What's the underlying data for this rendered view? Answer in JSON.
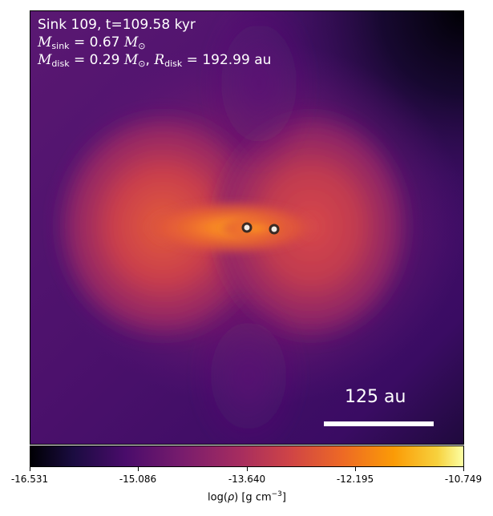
{
  "panel": {
    "title_line": "Sink 109, t=109.58 kyr",
    "mass_line": {
      "sym": "M",
      "sub": "sink",
      "value": " = 0.67 ",
      "unit_sym": "M",
      "unit_sub": "⊙"
    },
    "disk_line": {
      "mass_sym": "M",
      "mass_sub": "disk",
      "mass_value": " = 0.29 ",
      "mass_unit_sym": "M",
      "mass_unit_sub": "⊙",
      "sep": ", ",
      "radius_sym": "R",
      "radius_sub": "disk",
      "radius_value": " = 192.99 au"
    },
    "scale_bar_label": "125 au",
    "colormap": "inferno",
    "colors": {
      "bar": "#ffffff",
      "marker_outline": "#3a2a24",
      "marker_fill": "#f3ede6"
    }
  },
  "colorbar": {
    "ticks": [
      "-16.531",
      "-15.086",
      "-13.640",
      "-12.195",
      "-10.749"
    ],
    "label_pre": "log(",
    "label_rho": "ρ",
    "label_post": ") [g cm",
    "label_exp": "−3",
    "label_close": "]"
  }
}
